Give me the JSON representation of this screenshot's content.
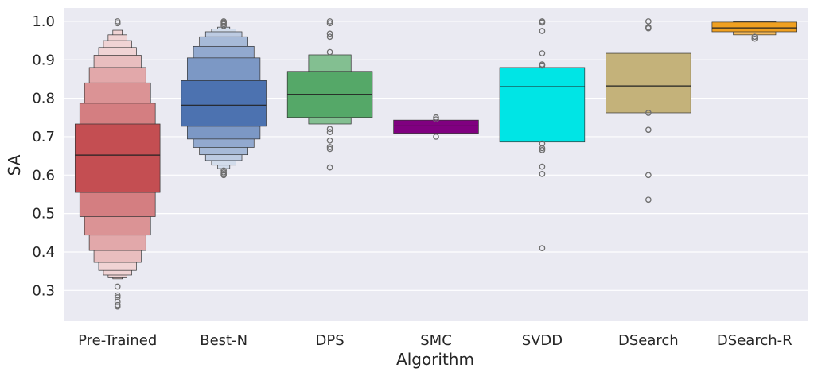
{
  "chart_data": {
    "type": "boxen",
    "title": "",
    "xlabel": "Algorithm",
    "ylabel": "SA",
    "ylim": [
      0.22,
      1.035
    ],
    "yticks": [
      0.3,
      0.4,
      0.5,
      0.6,
      0.7,
      0.8,
      0.9,
      1.0
    ],
    "ytick_labels": [
      "0.3",
      "0.4",
      "0.5",
      "0.6",
      "0.7",
      "0.8",
      "0.9",
      "1.0"
    ],
    "grid": true,
    "background": "#eaeaf2",
    "categories": [
      "Pre-Trained",
      "Best-N",
      "DPS",
      "SMC",
      "SVDD",
      "DSearch",
      "DSearch-R"
    ],
    "series": [
      {
        "name": "Pre-Trained",
        "color": "#c44e52",
        "median": 0.652,
        "boxes": [
          [
            0.555,
            0.733
          ],
          [
            0.492,
            0.787
          ],
          [
            0.444,
            0.84
          ],
          [
            0.404,
            0.88
          ],
          [
            0.373,
            0.912
          ],
          [
            0.352,
            0.932
          ],
          [
            0.34,
            0.95
          ],
          [
            0.333,
            0.965
          ],
          [
            0.33,
            0.977
          ]
        ],
        "outliers": [
          0.31,
          0.287,
          0.282,
          0.27,
          0.262,
          0.258,
          0.995,
          1.0
        ]
      },
      {
        "name": "Best-N",
        "color": "#4c72b0",
        "median": 0.782,
        "boxes": [
          [
            0.727,
            0.846
          ],
          [
            0.694,
            0.905
          ],
          [
            0.672,
            0.935
          ],
          [
            0.653,
            0.96
          ],
          [
            0.638,
            0.973
          ],
          [
            0.626,
            0.98
          ],
          [
            0.617,
            0.985
          ]
        ],
        "outliers": [
          0.612,
          0.607,
          0.603,
          0.6,
          0.988,
          0.993,
          0.997,
          1.0
        ]
      },
      {
        "name": "DPS",
        "color": "#55a868",
        "median": 0.81,
        "boxes": [
          [
            0.75,
            0.87
          ],
          [
            0.733,
            0.913
          ]
        ],
        "outliers": [
          0.72,
          0.712,
          0.69,
          0.673,
          0.668,
          0.62,
          0.92,
          0.96,
          0.968,
          0.995,
          1.0
        ]
      },
      {
        "name": "SMC",
        "color": "#800080",
        "median": 0.728,
        "boxes": [
          [
            0.709,
            0.743
          ]
        ],
        "outliers": [
          0.7,
          0.745,
          0.75
        ]
      },
      {
        "name": "SVDD",
        "color": "#00e5e5",
        "median": 0.83,
        "boxes": [
          [
            0.686,
            0.88
          ]
        ],
        "outliers": [
          0.682,
          0.67,
          0.665,
          0.622,
          0.603,
          0.41,
          0.885,
          0.888,
          0.917,
          0.975,
          0.997,
          1.0
        ]
      },
      {
        "name": "DSearch",
        "color": "#c4b27a",
        "median": 0.832,
        "boxes": [
          [
            0.762,
            0.917
          ]
        ],
        "outliers": [
          0.762,
          0.718,
          0.6,
          0.536,
          0.982,
          0.985,
          1.0
        ]
      },
      {
        "name": "DSearch-R",
        "color": "#f0a020",
        "median": 0.983,
        "boxes": [
          [
            0.973,
            0.998
          ],
          [
            0.965,
            0.999
          ]
        ],
        "outliers": [
          0.955,
          0.96
        ]
      }
    ]
  }
}
